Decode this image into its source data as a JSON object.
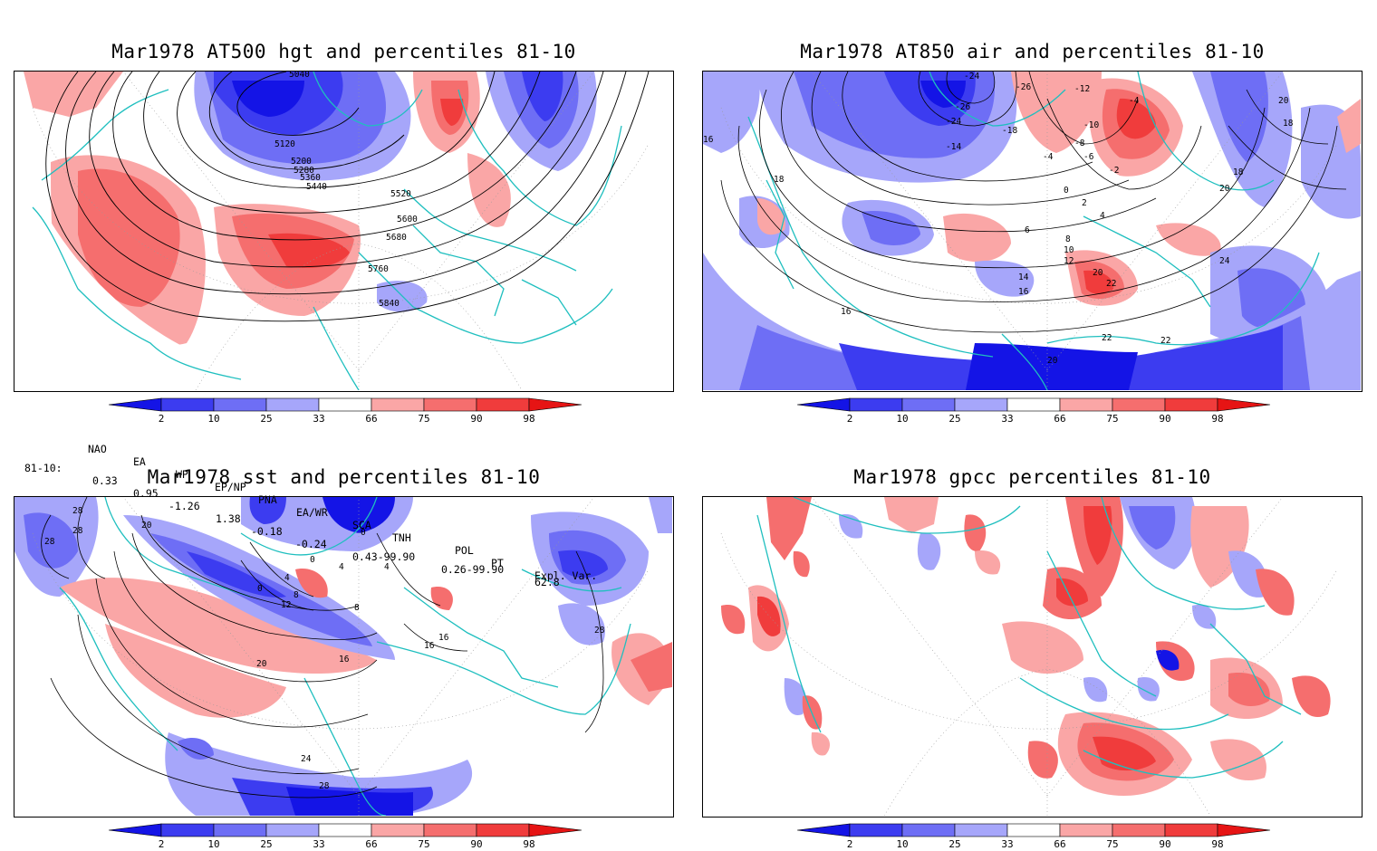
{
  "panels": [
    {
      "title": "Mar1978 AT500 hgt and percentiles 81-10",
      "contour_labels": [
        "5040",
        "5120",
        "5200",
        "5280",
        "5360",
        "5440",
        "5520",
        "5600",
        "5680",
        "5760",
        "5840"
      ]
    },
    {
      "title": "Mar1978 AT850 air and percentiles 81-10",
      "contour_labels": [
        "-24",
        "-26",
        "-26",
        "-24",
        "-14",
        "-18",
        "-12",
        "-10",
        "-4",
        "-8",
        "-6",
        "-4",
        "-2",
        "0",
        "2",
        "4",
        "6",
        "8",
        "10",
        "12",
        "14",
        "16",
        "16",
        "16",
        "18",
        "18",
        "18",
        "20",
        "20",
        "20",
        "20",
        "22",
        "22",
        "22",
        "24"
      ]
    },
    {
      "title": "Mar1978 sst and percentiles 81-10",
      "contour_labels": [
        "28",
        "28",
        "28",
        "20",
        "0",
        "0",
        "0",
        "4",
        "4",
        "4",
        "8",
        "8",
        "12",
        "16",
        "16",
        "16",
        "20",
        "24",
        "28",
        "28"
      ]
    },
    {
      "title": "Mar1978 gpcc percentiles 81-10",
      "contour_labels": []
    }
  ],
  "colorbar": {
    "labels": [
      "2",
      "10",
      "25",
      "33",
      "66",
      "75",
      "90",
      "98"
    ],
    "colors": [
      "#1414e6",
      "#3c3cf0",
      "#6e6ef5",
      "#a6a6fa",
      "#ffffff",
      "#faa6a6",
      "#f56e6e",
      "#f03c3c",
      "#e61414"
    ]
  },
  "indices": {
    "header": [
      "NAO",
      "EA",
      "WP",
      "EP/NP",
      "PNA",
      "EA/WR",
      "SCA",
      "TNH",
      "POL",
      "PT",
      "Expl. Var."
    ],
    "row_label": "81-10:",
    "values": [
      "0.33",
      "0.95",
      "-1.26",
      "1.38",
      "-0.18",
      "-0.24",
      "0.43-99.90",
      "0.26-99.90",
      "62.8"
    ]
  },
  "colors": {
    "coast": "#1fbfbf",
    "contour": "#000000",
    "frame": "#000000"
  }
}
